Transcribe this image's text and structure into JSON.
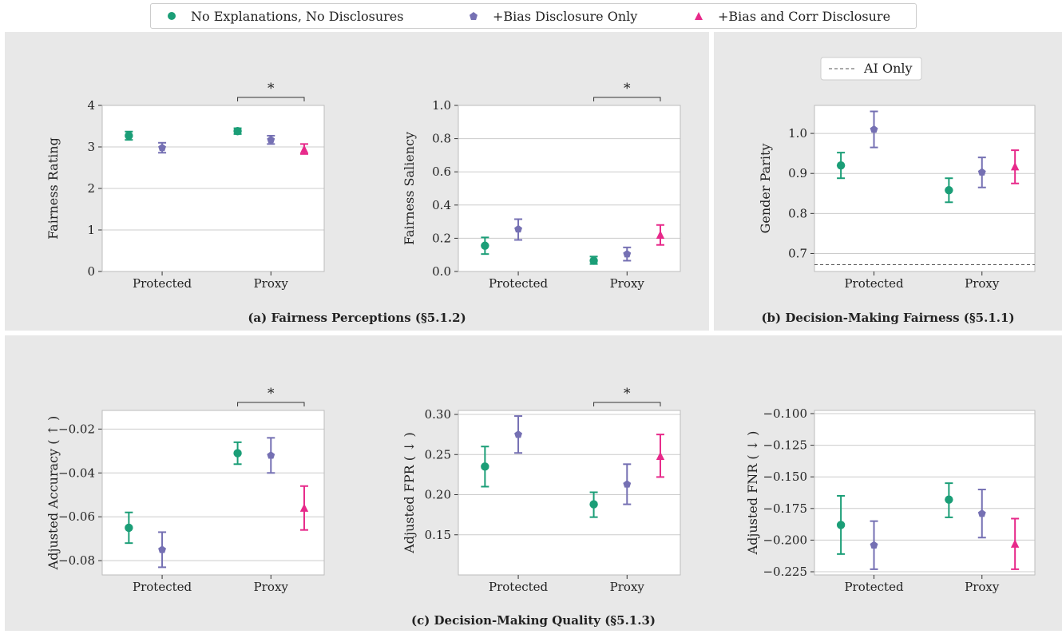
{
  "colors": {
    "no_expl": "#1b9e77",
    "bias_only": "#7570b3",
    "bias_corr": "#e7298a",
    "panel_bg": "#e8e8e8",
    "axis_bg": "#ffffff",
    "grid": "#cccccc"
  },
  "legend": {
    "items": [
      {
        "label": "No Explanations, No Disclosures",
        "marker": "circle",
        "color": "#1b9e77"
      },
      {
        "label": "+Bias Disclosure Only",
        "marker": "pentagon",
        "color": "#7570b3"
      },
      {
        "label": "+Bias and Corr Disclosure",
        "marker": "triangle",
        "color": "#e7298a"
      }
    ]
  },
  "captions": {
    "a": "(a) Fairness Perceptions (§5.1.2)",
    "b": "(b) Decision-Making Fairness (§5.1.1)",
    "c": "(c) Decision-Making Quality (§5.1.3)"
  },
  "chart_data": [
    {
      "type": "scatter",
      "ylabel": "Fairness Rating",
      "categories": [
        "Protected",
        "Proxy"
      ],
      "ylim": [
        0,
        4
      ],
      "yticks": [
        0,
        1,
        2,
        3,
        4
      ],
      "ytick_labels": [
        "0",
        "1",
        "2",
        "3",
        "4"
      ],
      "grid": true,
      "significance": {
        "category": "Proxy",
        "label": "*"
      },
      "series": [
        {
          "key": "no_expl",
          "values": [
            3.27,
            3.38
          ],
          "err_low": [
            3.17,
            3.31
          ],
          "err_high": [
            3.37,
            3.45
          ]
        },
        {
          "key": "bias_only",
          "values": [
            2.98,
            3.17
          ],
          "err_low": [
            2.86,
            3.07
          ],
          "err_high": [
            3.1,
            3.27
          ]
        },
        {
          "key": "bias_corr",
          "values": [
            null,
            2.94
          ],
          "err_low": [
            null,
            2.83
          ],
          "err_high": [
            null,
            3.07
          ]
        }
      ]
    },
    {
      "type": "scatter",
      "ylabel": "Fairness Saliency",
      "categories": [
        "Protected",
        "Proxy"
      ],
      "ylim": [
        0,
        1
      ],
      "yticks": [
        0,
        0.2,
        0.4,
        0.6,
        0.8,
        1.0
      ],
      "ytick_labels": [
        "0.0",
        "0.2",
        "0.4",
        "0.6",
        "0.8",
        "1.0"
      ],
      "grid": true,
      "significance": {
        "category": "Proxy",
        "label": "*"
      },
      "series": [
        {
          "key": "no_expl",
          "values": [
            0.155,
            0.065
          ],
          "err_low": [
            0.105,
            0.045
          ],
          "err_high": [
            0.205,
            0.09
          ]
        },
        {
          "key": "bias_only",
          "values": [
            0.255,
            0.105
          ],
          "err_low": [
            0.19,
            0.065
          ],
          "err_high": [
            0.315,
            0.145
          ]
        },
        {
          "key": "bias_corr",
          "values": [
            null,
            0.22
          ],
          "err_low": [
            null,
            0.16
          ],
          "err_high": [
            null,
            0.28
          ]
        }
      ]
    },
    {
      "type": "scatter",
      "ylabel": "Gender Parity",
      "categories": [
        "Protected",
        "Proxy"
      ],
      "ylim": [
        0.655,
        1.07
      ],
      "yticks": [
        0.7,
        0.8,
        0.9,
        1.0
      ],
      "ytick_labels": [
        "0.7",
        "0.8",
        "0.9",
        "1.0"
      ],
      "grid": true,
      "reference_line": {
        "label": "AI Only",
        "value": 0.672
      },
      "series": [
        {
          "key": "no_expl",
          "values": [
            0.92,
            0.858
          ],
          "err_low": [
            0.888,
            0.828
          ],
          "err_high": [
            0.952,
            0.888
          ]
        },
        {
          "key": "bias_only",
          "values": [
            1.01,
            0.903
          ],
          "err_low": [
            0.965,
            0.865
          ],
          "err_high": [
            1.055,
            0.94
          ]
        },
        {
          "key": "bias_corr",
          "values": [
            null,
            0.917
          ],
          "err_low": [
            null,
            0.875
          ],
          "err_high": [
            null,
            0.958
          ]
        }
      ]
    },
    {
      "type": "scatter",
      "ylabel": "Adjusted Accuracy ( ↑ )",
      "categories": [
        "Protected",
        "Proxy"
      ],
      "ylim": [
        -0.0865,
        -0.0115
      ],
      "yticks": [
        -0.08,
        -0.06,
        -0.04,
        -0.02
      ],
      "ytick_labels": [
        "−0.08",
        "−0.06",
        "−0.04",
        "−0.02"
      ],
      "grid": true,
      "significance": {
        "category": "Proxy",
        "label": "*"
      },
      "series": [
        {
          "key": "no_expl",
          "values": [
            -0.065,
            -0.031
          ],
          "err_low": [
            -0.072,
            -0.036
          ],
          "err_high": [
            -0.058,
            -0.026
          ]
        },
        {
          "key": "bias_only",
          "values": [
            -0.075,
            -0.032
          ],
          "err_low": [
            -0.083,
            -0.04
          ],
          "err_high": [
            -0.067,
            -0.024
          ]
        },
        {
          "key": "bias_corr",
          "values": [
            null,
            -0.056
          ],
          "err_low": [
            null,
            -0.066
          ],
          "err_high": [
            null,
            -0.046
          ]
        }
      ]
    },
    {
      "type": "scatter",
      "ylabel": "Adjusted FPR ( ↓ )",
      "categories": [
        "Protected",
        "Proxy"
      ],
      "ylim": [
        0.1,
        0.305
      ],
      "yticks": [
        0.15,
        0.2,
        0.25,
        0.3
      ],
      "ytick_labels": [
        "0.15",
        "0.20",
        "0.25",
        "0.30"
      ],
      "grid": true,
      "significance": {
        "category": "Proxy",
        "label": "*"
      },
      "series": [
        {
          "key": "no_expl",
          "values": [
            0.235,
            0.188
          ],
          "err_low": [
            0.21,
            0.172
          ],
          "err_high": [
            0.26,
            0.203
          ]
        },
        {
          "key": "bias_only",
          "values": [
            0.275,
            0.213
          ],
          "err_low": [
            0.252,
            0.188
          ],
          "err_high": [
            0.298,
            0.238
          ]
        },
        {
          "key": "bias_corr",
          "values": [
            null,
            0.248
          ],
          "err_low": [
            null,
            0.222
          ],
          "err_high": [
            null,
            0.275
          ]
        }
      ]
    },
    {
      "type": "scatter",
      "ylabel": "Adjusted FNR ( ↓ )",
      "categories": [
        "Protected",
        "Proxy"
      ],
      "ylim": [
        -0.2275,
        -0.0975
      ],
      "yticks": [
        -0.225,
        -0.2,
        -0.175,
        -0.15,
        -0.125,
        -0.1
      ],
      "ytick_labels": [
        "−0.225",
        "−0.200",
        "−0.175",
        "−0.150",
        "−0.125",
        "−0.100"
      ],
      "grid": true,
      "series": [
        {
          "key": "no_expl",
          "values": [
            -0.188,
            -0.168
          ],
          "err_low": [
            -0.211,
            -0.182
          ],
          "err_high": [
            -0.165,
            -0.155
          ]
        },
        {
          "key": "bias_only",
          "values": [
            -0.204,
            -0.179
          ],
          "err_low": [
            -0.223,
            -0.198
          ],
          "err_high": [
            -0.185,
            -0.16
          ]
        },
        {
          "key": "bias_corr",
          "values": [
            null,
            -0.203
          ],
          "err_low": [
            null,
            -0.223
          ],
          "err_high": [
            null,
            -0.183
          ]
        }
      ]
    }
  ]
}
